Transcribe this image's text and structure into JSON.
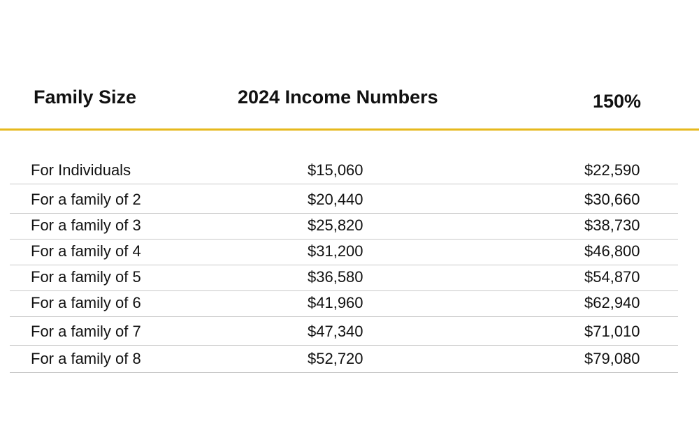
{
  "table": {
    "headers": [
      "Family Size",
      "2024 Income Numbers",
      "150%"
    ],
    "rows": [
      [
        "For Individuals",
        "$15,060",
        "$22,590"
      ],
      [
        "For a family of 2",
        "$20,440",
        "$30,660"
      ],
      [
        "For a family of 3",
        "$25,820",
        "$38,730"
      ],
      [
        "For a family of 4",
        "$31,200",
        "$46,800"
      ],
      [
        "For a family of 5",
        "$36,580",
        "$54,870"
      ],
      [
        "For a family of 6",
        "$41,960",
        "$62,940"
      ],
      [
        "For a family of 7",
        "$47,340",
        "$71,010"
      ],
      [
        "For a family of 8",
        "$52,720",
        "$79,080"
      ]
    ]
  },
  "colors": {
    "accent_rule": "#e6b91e",
    "row_divider": "#c8c8c8"
  }
}
